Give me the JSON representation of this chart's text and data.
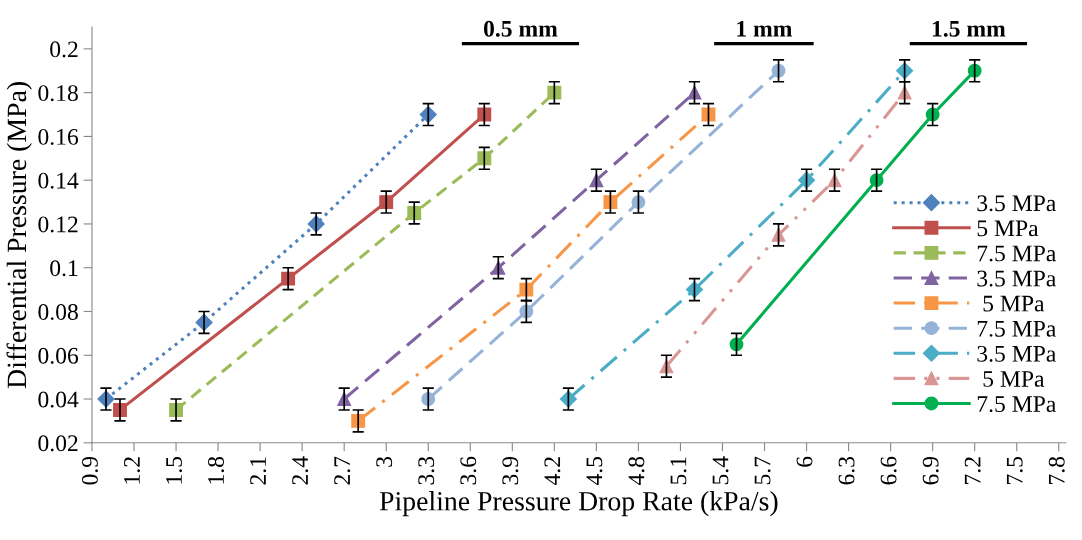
{
  "chart_data": {
    "type": "line",
    "xlabel": "Pipeline Pressure Drop Rate (kPa/s)",
    "ylabel": "Differential Pressure (MPa)",
    "annotations": [
      "0.5 mm",
      "1 mm",
      "1.5 mm"
    ],
    "xlim": [
      0.9,
      7.85
    ],
    "xticks": [
      0.9,
      1.2,
      1.5,
      1.8,
      2.1,
      2.4,
      2.7,
      3,
      3.3,
      3.6,
      3.9,
      4.2,
      4.5,
      4.8,
      5.1,
      5.4,
      5.7,
      6,
      6.3,
      6.6,
      6.9,
      7.2,
      7.5,
      7.8
    ],
    "ylim": [
      0.02,
      0.21
    ],
    "yticks": [
      0.02,
      0.04,
      0.06,
      0.08,
      0.1,
      0.12,
      0.14,
      0.16,
      0.18,
      0.2
    ],
    "grid": false,
    "legend": "right",
    "series": [
      {
        "name": "3.5 MPa",
        "color": "#4f81bd",
        "marker": "diamond",
        "line_style": "dotted",
        "x": [
          1.0,
          1.7,
          2.5,
          3.3
        ],
        "values": [
          0.04,
          0.075,
          0.12,
          0.17
        ],
        "errors": [
          0.005,
          0.005,
          0.005,
          0.005
        ]
      },
      {
        "name": "5 MPa",
        "color": "#c0504d",
        "marker": "square",
        "line_style": "solid",
        "x": [
          1.1,
          2.3,
          3.0,
          3.7
        ],
        "values": [
          0.035,
          0.095,
          0.13,
          0.17
        ],
        "errors": [
          0.005,
          0.005,
          0.005,
          0.005
        ]
      },
      {
        "name": "7.5 MPa",
        "color": "#9bbb59",
        "marker": "square",
        "line_style": "dashed",
        "x": [
          1.5,
          3.2,
          3.7,
          4.2
        ],
        "values": [
          0.035,
          0.125,
          0.15,
          0.18
        ],
        "errors": [
          0.005,
          0.005,
          0.005,
          0.005
        ]
      },
      {
        "name": "3.5 MPa",
        "color": "#8064a2",
        "marker": "triangle",
        "line_style": "longdash",
        "x": [
          2.7,
          3.8,
          4.5,
          5.2
        ],
        "values": [
          0.04,
          0.1,
          0.14,
          0.18
        ],
        "errors": [
          0.005,
          0.005,
          0.005,
          0.005
        ]
      },
      {
        "name": " 5 MPa",
        "color": "#f79646",
        "marker": "square",
        "line_style": "dashdot",
        "x": [
          2.8,
          4.0,
          4.6,
          5.3
        ],
        "values": [
          0.03,
          0.09,
          0.13,
          0.17
        ],
        "errors": [
          0.005,
          0.005,
          0.005,
          0.005
        ]
      },
      {
        "name": "7.5 MPa",
        "color": "#95b3d7",
        "marker": "circle",
        "line_style": "longdash",
        "x": [
          3.3,
          4.0,
          4.8,
          5.8
        ],
        "values": [
          0.04,
          0.08,
          0.13,
          0.19
        ],
        "errors": [
          0.005,
          0.005,
          0.005,
          0.005
        ]
      },
      {
        "name": "3.5 MPa",
        "color": "#4bacc6",
        "marker": "diamond",
        "line_style": "dashdot",
        "x": [
          4.3,
          5.2,
          6.0,
          6.7
        ],
        "values": [
          0.04,
          0.09,
          0.14,
          0.19
        ],
        "errors": [
          0.005,
          0.005,
          0.005,
          0.005
        ]
      },
      {
        "name": " 5 MPa",
        "color": "#d99694",
        "marker": "triangle",
        "line_style": "dashdotdot",
        "x": [
          5.0,
          5.8,
          6.2,
          6.7
        ],
        "values": [
          0.055,
          0.115,
          0.14,
          0.18
        ],
        "errors": [
          0.005,
          0.005,
          0.005,
          0.005
        ]
      },
      {
        "name": "7.5 MPa",
        "color": "#00b050",
        "marker": "circle",
        "line_style": "solid",
        "x": [
          5.5,
          6.5,
          6.9,
          7.2
        ],
        "values": [
          0.065,
          0.14,
          0.17,
          0.19
        ],
        "errors": [
          0.005,
          0.005,
          0.005,
          0.005
        ]
      }
    ]
  }
}
